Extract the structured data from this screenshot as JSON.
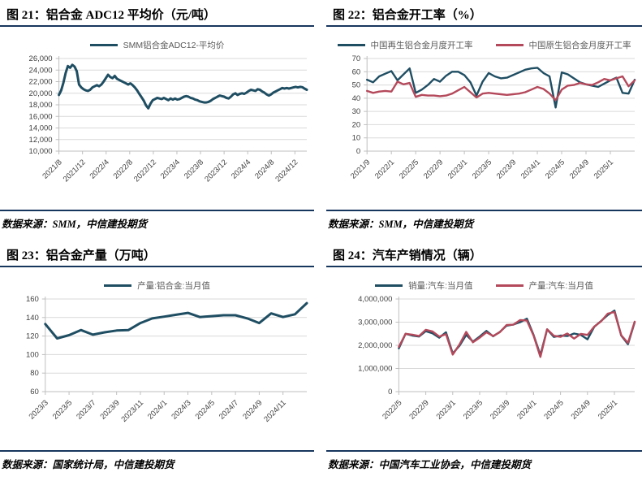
{
  "colors": {
    "rule_navy": "#17365D",
    "line_blue": "#1F4E63",
    "line_red": "#B4495B",
    "axis_gray": "#BFBFBF",
    "grid_gray": "#D9D9D9",
    "tick_text": "#404040",
    "legend_text": "#595959"
  },
  "chart_data": [
    {
      "type": "line",
      "title": "图 21：铝合金 ADC12 平均价（元/吨）",
      "source": "数据来源：SMM，中信建投期货",
      "legend_position": "top",
      "grid": true,
      "ylim": [
        10000,
        26000
      ],
      "yticks": [
        10000,
        12000,
        14000,
        16000,
        18000,
        20000,
        22000,
        24000,
        26000
      ],
      "ytick_labels": [
        "10,000",
        "12,000",
        "14,000",
        "16,000",
        "18,000",
        "20,000",
        "22,000",
        "24,000",
        "26,000"
      ],
      "xtick_labels": [
        "2021/8",
        "2021/12",
        "2022/4",
        "2022/8",
        "2022/12",
        "2023/4",
        "2023/8",
        "2023/12",
        "2024/4",
        "2024/8",
        "2024/12"
      ],
      "tick_end": 0.952,
      "line_width": 3,
      "series": [
        {
          "name": "SMM铝合金ADC12-平均价",
          "color": "#1F4E63",
          "values": [
            19700,
            20500,
            21800,
            23500,
            24700,
            24400,
            24900,
            24600,
            23800,
            21500,
            21000,
            20700,
            20500,
            20400,
            20600,
            21000,
            21200,
            21400,
            21200,
            21500,
            22000,
            22600,
            23200,
            22800,
            22600,
            23000,
            22500,
            22300,
            22100,
            21900,
            21700,
            21500,
            21700,
            21400,
            21000,
            20500,
            19900,
            19300,
            18700,
            17900,
            17400,
            18200,
            18800,
            19000,
            19200,
            19100,
            19000,
            19200,
            19000,
            18800,
            19100,
            18900,
            19100,
            18900,
            19000,
            19200,
            19400,
            19500,
            19400,
            19200,
            19100,
            18900,
            18800,
            18600,
            18500,
            18400,
            18400,
            18500,
            18700,
            19000,
            19200,
            19400,
            19600,
            19500,
            19400,
            19200,
            19100,
            19400,
            19800,
            20000,
            19700,
            19900,
            20000,
            19900,
            20100,
            20400,
            20600,
            20500,
            20400,
            20700,
            20600,
            20300,
            20100,
            19800,
            19600,
            19800,
            20100,
            20300,
            20500,
            20700,
            20900,
            20800,
            20900,
            20800,
            20900,
            21000,
            21100,
            21000,
            21100,
            21050,
            20800,
            20600
          ]
        }
      ]
    },
    {
      "type": "line",
      "title": "图 22：铝合金开工率（%）",
      "source": "数据来源：SMM，中信建投期货",
      "legend_position": "top",
      "grid": true,
      "ylim": [
        0,
        70
      ],
      "yticks": [
        0,
        10,
        20,
        30,
        40,
        50,
        60,
        70
      ],
      "ytick_labels": [
        "0",
        "10",
        "20",
        "30",
        "40",
        "50",
        "60",
        "70"
      ],
      "xtick_labels": [
        "2021/9",
        "2022/1",
        "2022/5",
        "2022/9",
        "2023/1",
        "2023/5",
        "2023/9",
        "2024/1",
        "2024/5",
        "2024/9",
        "2025/1"
      ],
      "tick_end": 0.909,
      "line_width": 2.4,
      "series": [
        {
          "name": "中国再生铝合金月度开工率",
          "color": "#1F4E63",
          "values": [
            54,
            52,
            56.5,
            58.5,
            60.5,
            53.5,
            58,
            62.5,
            44,
            46.5,
            50,
            54.5,
            52.5,
            57,
            60,
            60,
            57.5,
            52,
            42,
            52.5,
            59,
            56.5,
            55,
            55.5,
            57.5,
            59.5,
            61.5,
            62.5,
            63,
            59,
            56.5,
            33,
            59.5,
            58,
            55,
            52,
            50.5,
            49.5,
            48.5,
            51,
            53.5,
            55.5,
            44,
            43.5,
            54
          ]
        },
        {
          "name": "中国原生铝合金月度开工率",
          "color": "#B4495B",
          "values": [
            45.5,
            44,
            45,
            45.5,
            45,
            52.5,
            50.5,
            51.5,
            41,
            42.5,
            42,
            42,
            41.5,
            42,
            43.5,
            46,
            48.5,
            44.5,
            40.5,
            43.5,
            44,
            43.5,
            43,
            42.5,
            43,
            43.5,
            44.5,
            46.5,
            48.5,
            47,
            43.5,
            38.5,
            46.5,
            49.5,
            50,
            51.5,
            50.5,
            50,
            52,
            54.5,
            53.5,
            55,
            56.5,
            49,
            53.5
          ]
        }
      ]
    },
    {
      "type": "line",
      "title": "图 23：铝合金产量（万吨）",
      "source": "数据来源：国家统计局，中信建投期货",
      "legend_position": "top",
      "grid": true,
      "ylim": [
        60,
        160
      ],
      "yticks": [
        60,
        80,
        100,
        120,
        140,
        160
      ],
      "ytick_labels": [
        "60",
        "80",
        "100",
        "120",
        "140",
        "160"
      ],
      "xtick_labels": [
        "2023/3",
        "2023/5",
        "2023/7",
        "2023/9",
        "2023/11",
        "2024/1",
        "2024/3",
        "2024/5",
        "2024/7",
        "2024/9",
        "2024/11"
      ],
      "tick_end": 0.909,
      "line_width": 3,
      "series": [
        {
          "name": "产量:铝合金:当月值",
          "color": "#1F4E63",
          "values": [
            133,
            117.5,
            121,
            126.5,
            121.5,
            124,
            126,
            126.5,
            134,
            139,
            141,
            143,
            145,
            140.5,
            141.5,
            142.5,
            142.5,
            139,
            134,
            144.5,
            140.5,
            143.5,
            155.5
          ]
        }
      ]
    },
    {
      "type": "line",
      "title": "图 24：汽车产销情况（辆）",
      "source": "数据来源：中国汽车工业协会，中信建投期货",
      "legend_position": "top",
      "grid": true,
      "ylim": [
        0,
        4000000
      ],
      "yticks": [
        0,
        1000000,
        2000000,
        3000000,
        4000000
      ],
      "ytick_labels": [
        "0",
        "1,000,000",
        "2,000,000",
        "3,000,000",
        "4,000,000"
      ],
      "xtick_labels": [
        "2022/5",
        "2022/9",
        "2023/1",
        "2023/5",
        "2023/9",
        "2024/1",
        "2024/5",
        "2024/9",
        "2025/1"
      ],
      "tick_end": 0.914,
      "line_width": 2.4,
      "series": [
        {
          "name": "销量:汽车:当月值",
          "color": "#1F4E63",
          "values": [
            1870000,
            2500000,
            2420000,
            2380000,
            2610000,
            2520000,
            2330000,
            2560000,
            1650000,
            1980000,
            2450000,
            2160000,
            2380000,
            2620000,
            2390000,
            2580000,
            2850000,
            2900000,
            3000000,
            3150000,
            2440000,
            1580000,
            2690000,
            2360000,
            2420000,
            2400000,
            2510000,
            2450000,
            2260000,
            2800000,
            3050000,
            3310000,
            3500000,
            2420000,
            2050000,
            3000000
          ]
        },
        {
          "name": "产量:汽车:当月值",
          "color": "#B4495B",
          "values": [
            1930000,
            2500000,
            2460000,
            2400000,
            2670000,
            2600000,
            2380000,
            2480000,
            1600000,
            2030000,
            2580000,
            2130000,
            2330000,
            2560000,
            2400000,
            2570000,
            2880000,
            2890000,
            3090000,
            3070000,
            2410000,
            1500000,
            2690000,
            2410000,
            2370000,
            2510000,
            2290000,
            2490000,
            2450000,
            2810000,
            3030000,
            3370000,
            3440000,
            2430000,
            2100000,
            3020000
          ]
        }
      ]
    }
  ]
}
